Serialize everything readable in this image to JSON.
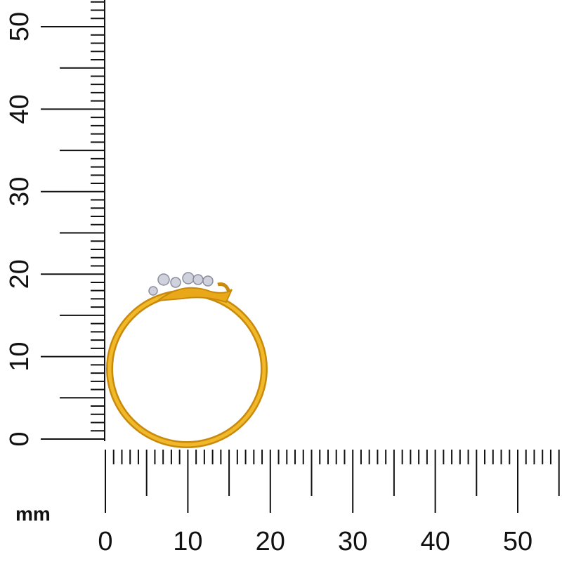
{
  "ruler": {
    "unit": "mm",
    "horizontal_labels": [
      "0",
      "10",
      "20",
      "30",
      "40",
      "50"
    ],
    "vertical_labels": [
      "0",
      "10",
      "20",
      "30",
      "40",
      "50"
    ],
    "horizontal_max_mm": 55,
    "vertical_max_mm": 53,
    "tick_color": "#111111"
  },
  "product": {
    "type": "ring",
    "metal_color": "#e9a81a",
    "stone_color": "#c9ccd6"
  }
}
